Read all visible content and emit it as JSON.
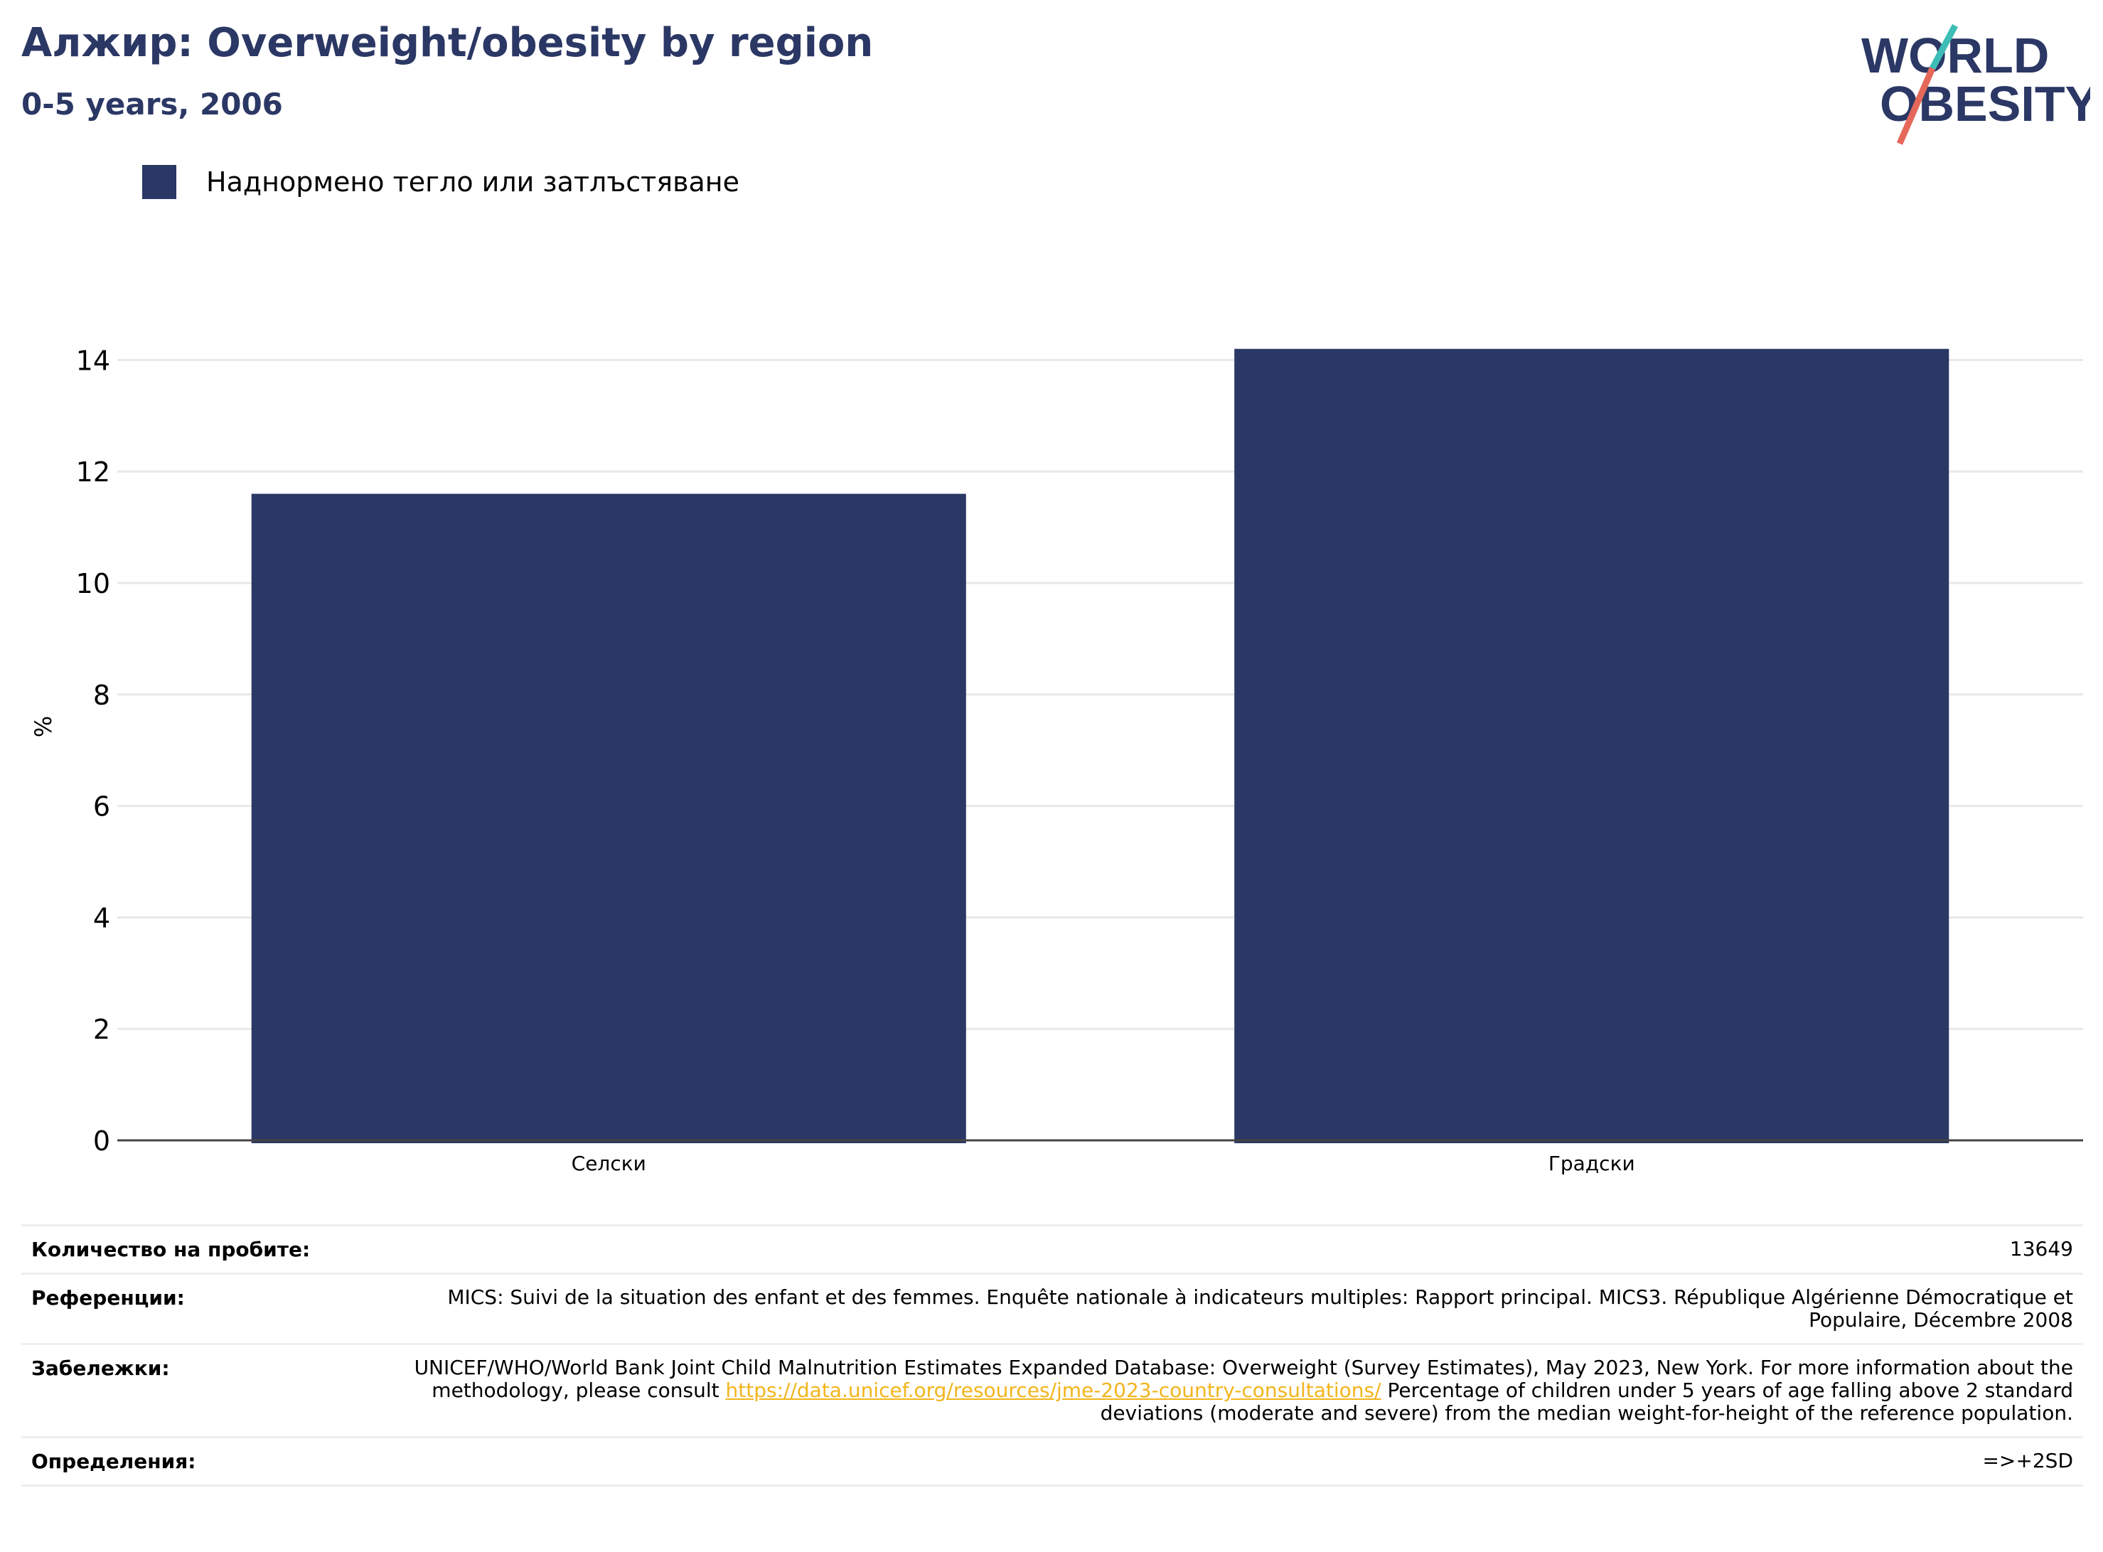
{
  "header": {
    "title": "Алжир: Overweight/obesity by region",
    "subtitle": "0-5 years, 2006"
  },
  "logo": {
    "line1": "WORLD",
    "line2": "OBESITY",
    "colors": {
      "text": "#2b3764",
      "slash_teal": "#3dbdb6",
      "slash_red": "#e5685a"
    }
  },
  "legend": {
    "label": "Наднормено тегло или затлъстяване",
    "color": "#2b3764"
  },
  "chart_data": {
    "type": "bar",
    "categories": [
      "Селски",
      "Градски"
    ],
    "series": [
      {
        "name": "Наднормено тегло или затлъстяване",
        "values": [
          11.6,
          14.2
        ],
        "color": "#2b3764"
      }
    ],
    "ylabel": "%",
    "xlabel": "",
    "ylim": [
      0,
      15
    ],
    "yticks": [
      "0",
      "2",
      "4",
      "6",
      "8",
      "10",
      "12",
      "14"
    ],
    "grid": true,
    "legend_position": "top-left"
  },
  "info": {
    "sample_size": {
      "label": "Количество на пробите:",
      "value": "13649"
    },
    "references": {
      "label": "Референции:",
      "value": "MICS: Suivi de la situation des enfant et des femmes. Enquête nationale à indicateurs multiples: Rapport principal. MICS3. République Algérienne Démocratique et Populaire, Décembre 2008"
    },
    "notes": {
      "label": "Забележки:",
      "text_before": "UNICEF/WHO/World Bank Joint Child Malnutrition Estimates Expanded Database: Overweight (Survey Estimates), May 2023, New York. For more information about the methodology, please consult ",
      "link": "https://data.unicef.org/resources/jme-2023-country-consultations/",
      "text_after": " Percentage of children under 5 years of age falling above 2 standard deviations (moderate and severe) from the median weight-for-height of the reference population."
    },
    "definitions": {
      "label": "Определения:",
      "value": "=>+2SD"
    }
  }
}
